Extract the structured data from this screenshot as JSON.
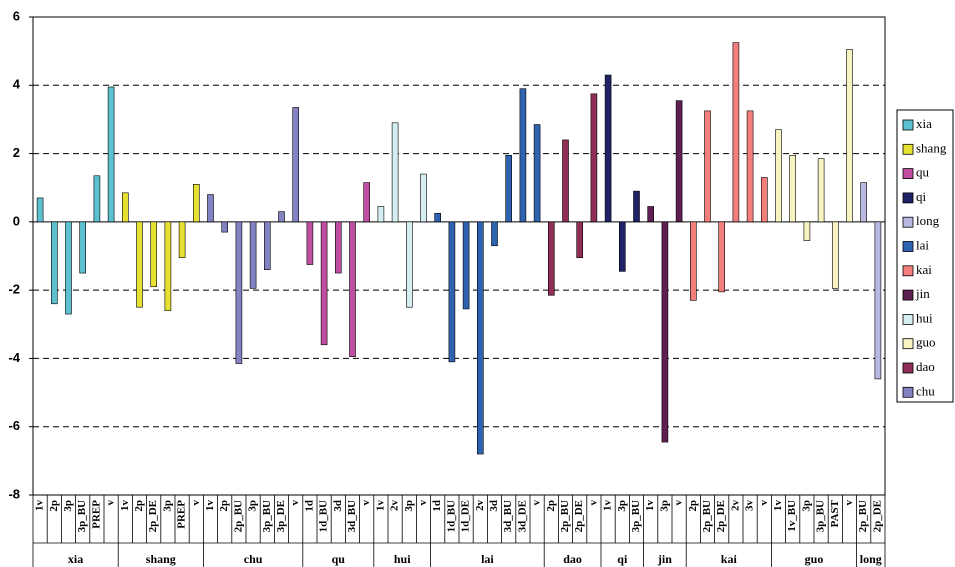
{
  "chart_data": {
    "type": "bar",
    "ylim": [
      -8,
      6
    ],
    "yticks": [
      -8,
      -6,
      -4,
      -2,
      0,
      2,
      4,
      6
    ],
    "grid": true,
    "groups": [
      {
        "name": "xia",
        "categories": [
          "1v",
          "2p",
          "3p",
          "3p_BU",
          "PREP",
          "v"
        ]
      },
      {
        "name": "shang",
        "categories": [
          "1v",
          "2p",
          "2p_DE",
          "3p",
          "PREP",
          "v"
        ]
      },
      {
        "name": "chu",
        "categories": [
          "1v",
          "2p",
          "2p_BU",
          "3p",
          "3p_BU",
          "3p_DE",
          "v"
        ]
      },
      {
        "name": "qu",
        "categories": [
          "1d",
          "1d_BU",
          "3d",
          "3d_BU",
          "v"
        ]
      },
      {
        "name": "hui",
        "categories": [
          "1v",
          "2v",
          "3p",
          "v"
        ]
      },
      {
        "name": "lai",
        "categories": [
          "1d",
          "1d_BU",
          "1d_DE",
          "2v",
          "3d",
          "3d_BU",
          "3d_DE",
          "v"
        ]
      },
      {
        "name": "dao",
        "categories": [
          "2p",
          "2p_BU",
          "2p_DE",
          "v"
        ]
      },
      {
        "name": "qi",
        "categories": [
          "1v",
          "3p",
          "3p_BU"
        ]
      },
      {
        "name": "jin",
        "categories": [
          "1v",
          "3p",
          "v"
        ]
      },
      {
        "name": "kai",
        "categories": [
          "2p",
          "2p_BU",
          "2p_DE",
          "2v",
          "3v",
          "v"
        ]
      },
      {
        "name": "guo",
        "categories": [
          "1v",
          "1v_BU",
          "3p",
          "3p_BU",
          "PAST",
          "v"
        ]
      },
      {
        "name": "long",
        "categories": [
          "2p_BU",
          "2p_DE"
        ]
      }
    ],
    "series": [
      {
        "name": "xia",
        "color": "#5cc0cf",
        "values": [
          0.7,
          -2.4,
          -2.7,
          -1.5,
          1.35,
          3.95
        ]
      },
      {
        "name": "shang",
        "color": "#e6e033",
        "values": [
          0.85,
          -2.5,
          -1.9,
          -2.6,
          -1.05,
          1.1
        ]
      },
      {
        "name": "qu",
        "color": "#c04fa3",
        "values": [
          -1.25,
          -3.6,
          -1.5,
          -3.95,
          1.15
        ]
      },
      {
        "name": "qi",
        "color": "#1f2266",
        "values": [
          4.3,
          -1.45,
          0.9
        ]
      },
      {
        "name": "long",
        "color": "#b8b8e0",
        "values": [
          1.15,
          -4.6
        ]
      },
      {
        "name": "lai",
        "color": "#2e63b0",
        "values": [
          0.25,
          -4.1,
          -2.55,
          -6.8,
          -0.7,
          1.95,
          3.9,
          2.85
        ]
      },
      {
        "name": "kai",
        "color": "#f27f7c",
        "values": [
          -2.3,
          3.25,
          -2.05,
          5.25,
          3.25,
          1.3
        ]
      },
      {
        "name": "jin",
        "color": "#5e1f52",
        "values": [
          0.45,
          -6.45,
          3.55
        ]
      },
      {
        "name": "hui",
        "color": "#d4eef2",
        "values": [
          0.45,
          2.9,
          -2.5,
          1.4
        ]
      },
      {
        "name": "guo",
        "color": "#f7f4c2",
        "values": [
          2.7,
          1.95,
          -0.55,
          1.85,
          -1.95,
          5.05
        ]
      },
      {
        "name": "dao",
        "color": "#8f2f55",
        "values": [
          -2.15,
          2.4,
          -1.05,
          3.75
        ]
      },
      {
        "name": "chu",
        "color": "#8383c4",
        "values": [
          0.8,
          -0.3,
          -4.15,
          -1.95,
          -1.4,
          0.3,
          3.35
        ]
      }
    ]
  }
}
